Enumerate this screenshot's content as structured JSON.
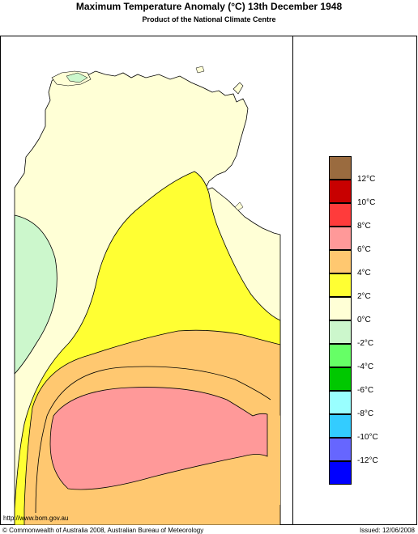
{
  "header": {
    "title": "Maximum Temperature Anomaly (°C)  13th December 1948",
    "subtitle": "Product of the National Climate Centre"
  },
  "legend": {
    "items": [
      {
        "label": "",
        "color": "#9a6b3f"
      },
      {
        "label": "12°C",
        "color": "#c80000"
      },
      {
        "label": "10°C",
        "color": "#ff3b3b"
      },
      {
        "label": "8°C",
        "color": "#ff9999"
      },
      {
        "label": "6°C",
        "color": "#ffc870"
      },
      {
        "label": "4°C",
        "color": "#ffff33"
      },
      {
        "label": "2°C",
        "color": "#ffffd6"
      },
      {
        "label": "0°C",
        "color": "#ccf7cc"
      },
      {
        "label": "-2°C",
        "color": "#66ff66"
      },
      {
        "label": "-4°C",
        "color": "#00c800"
      },
      {
        "label": "-6°C",
        "color": "#99ffff"
      },
      {
        "label": "-8°C",
        "color": "#33ccff"
      },
      {
        "label": "-10°C",
        "color": "#6666ff"
      },
      {
        "label": "-12°C",
        "color": "#0000ff"
      }
    ]
  },
  "footer": {
    "url": "http://www.bom.gov.au",
    "copyright": "© Commonwealth of Australia 2008, Australian Bureau of Meteorology",
    "issued": "Issued: 12/06/2008"
  }
}
